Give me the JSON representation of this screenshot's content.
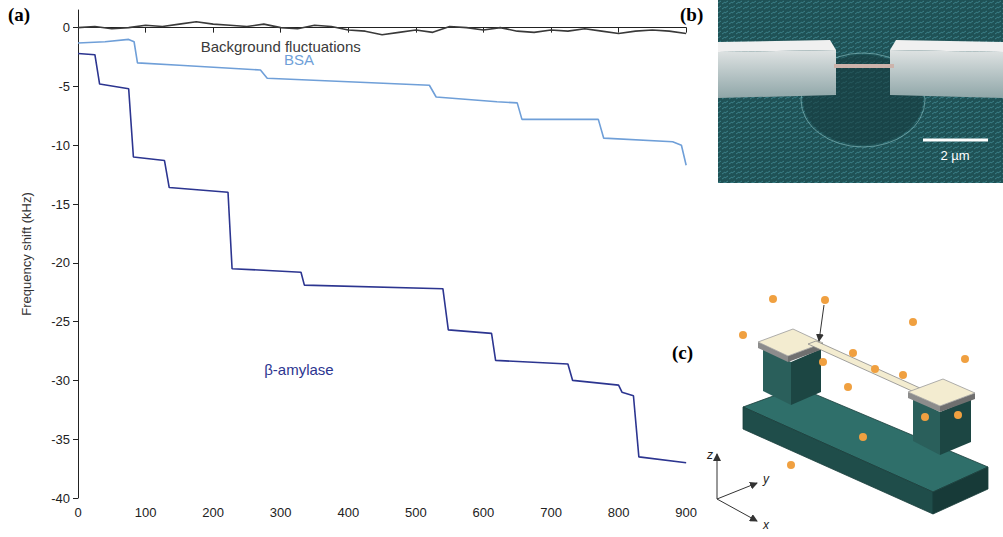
{
  "chart_data": {
    "type": "line",
    "panel_label": "(a)",
    "y_label": "Frequency shift (kHz)",
    "xlim": [
      0,
      900
    ],
    "xticks": [
      0,
      100,
      200,
      300,
      400,
      500,
      600,
      700,
      800,
      900
    ],
    "ylim": [
      -40,
      1.5
    ],
    "yticks": [
      -40,
      -35,
      -30,
      -25,
      -20,
      -15,
      -10,
      -5,
      0
    ],
    "grid": false,
    "series": [
      {
        "name": "Background fluctuations",
        "color": "#3a3a3a",
        "label_at": {
          "x": 300,
          "y": -1.6
        },
        "x": [
          0,
          25,
          50,
          75,
          100,
          125,
          150,
          175,
          200,
          225,
          250,
          275,
          300,
          325,
          350,
          375,
          400,
          425,
          450,
          475,
          500,
          525,
          550,
          575,
          600,
          625,
          650,
          675,
          700,
          725,
          750,
          775,
          800,
          825,
          850,
          875,
          900
        ],
        "values": [
          0,
          0.1,
          -0.1,
          0.0,
          0.2,
          0.1,
          0.3,
          0.5,
          0.3,
          0.2,
          0.1,
          0.3,
          0.0,
          -0.1,
          0.2,
          0.1,
          -0.2,
          -0.3,
          -0.6,
          -0.4,
          -0.2,
          -0.4,
          0.1,
          0.0,
          -0.2,
          0.0,
          -0.3,
          -0.4,
          -0.2,
          -0.3,
          -0.1,
          -0.3,
          -0.5,
          -0.3,
          -0.2,
          -0.3,
          -0.5
        ]
      },
      {
        "name": "BSA",
        "color": "#6f9fd8",
        "label_at": {
          "x": 327,
          "y": -2.7
        },
        "x": [
          0,
          40,
          75,
          83,
          88,
          150,
          270,
          280,
          400,
          520,
          530,
          620,
          650,
          657,
          770,
          778,
          880,
          893,
          900
        ],
        "values": [
          -1.3,
          -1.2,
          -1.0,
          -1.2,
          -3.0,
          -3.2,
          -3.6,
          -4.3,
          -4.6,
          -4.9,
          -5.9,
          -6.3,
          -6.4,
          -7.8,
          -7.8,
          -9.4,
          -9.7,
          -10.0,
          -11.7
        ]
      },
      {
        "name": "β-amylase",
        "color": "#2c3590",
        "label_at": {
          "x": 327,
          "y": -29.1
        },
        "x": [
          0,
          25,
          32,
          75,
          82,
          128,
          135,
          222,
          228,
          330,
          335,
          540,
          548,
          612,
          618,
          725,
          732,
          800,
          805,
          822,
          830,
          900
        ],
        "values": [
          -2.2,
          -2.3,
          -4.8,
          -5.2,
          -11.0,
          -11.3,
          -13.6,
          -14.0,
          -20.5,
          -20.8,
          -21.9,
          -22.2,
          -25.7,
          -26.0,
          -28.3,
          -28.6,
          -30.0,
          -30.4,
          -31.0,
          -31.3,
          -36.5,
          -37.0
        ]
      }
    ]
  },
  "panels": [
    {
      "panel_label": "(b)",
      "scale_bar": "2 µm"
    },
    {
      "panel_label": "(c)",
      "axis_labels": [
        "z",
        "y",
        "x"
      ]
    }
  ]
}
